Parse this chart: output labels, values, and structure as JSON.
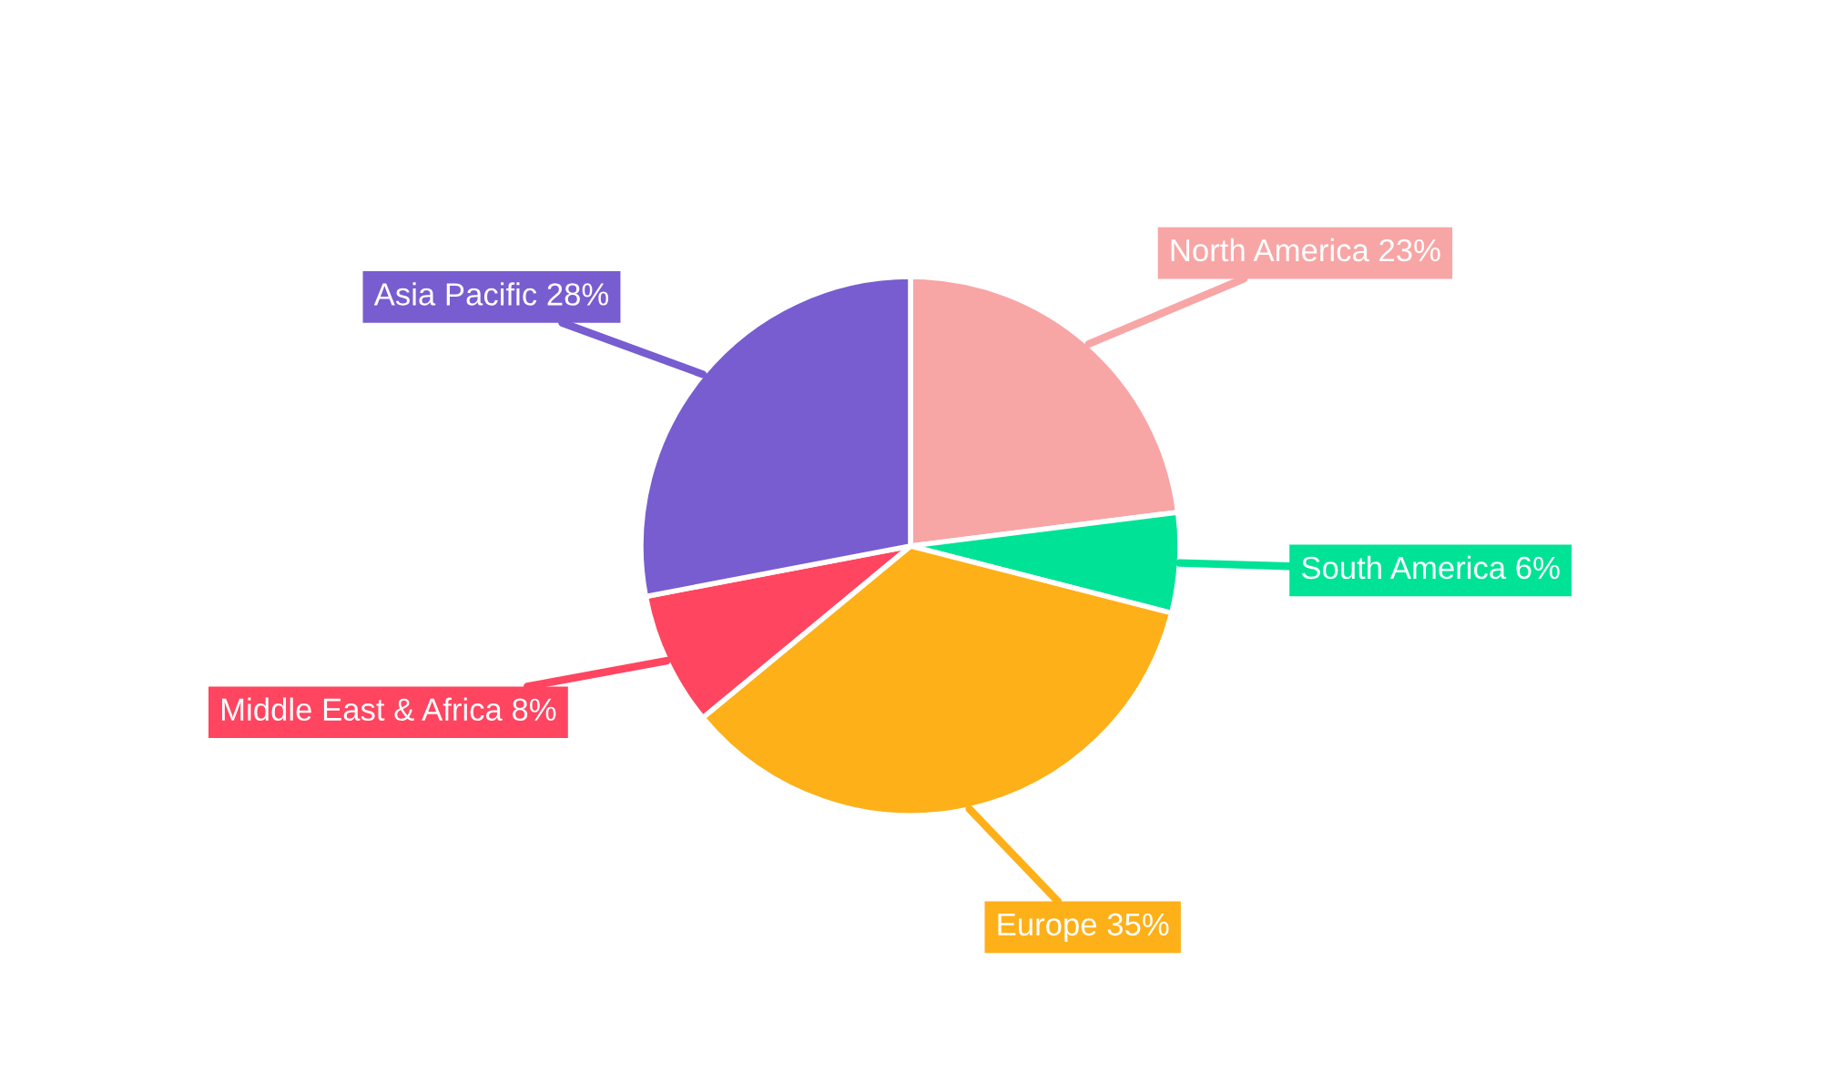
{
  "chart_data": {
    "type": "pie",
    "categories": [
      "North America",
      "South America",
      "Europe",
      "Middle East & Africa",
      "Asia Pacific"
    ],
    "values": [
      23,
      6,
      35,
      8,
      28
    ],
    "value_labels": [
      "23%",
      "6%",
      "35%",
      "8%",
      "28%"
    ],
    "colors": [
      "#f8a5a6",
      "#00e396",
      "#feb019",
      "#ff4560",
      "#775dd0"
    ],
    "legend": false
  }
}
